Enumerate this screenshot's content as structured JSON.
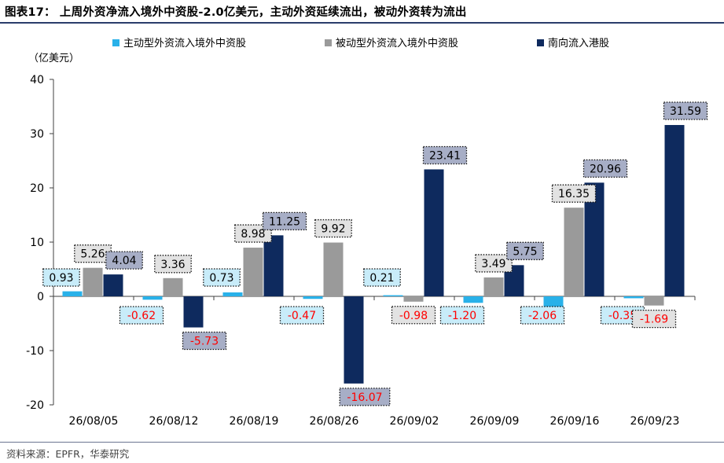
{
  "title": "图表17：  上周外资净流入境外中资股-2.0亿美元，主动外资延续流出，被动外资转为流出",
  "source": "资料来源：EPFR，华泰研究",
  "colors": {
    "active": "#29b1e9",
    "passive": "#9a9a9a",
    "southbound": "#0e2a5e",
    "label_red": "#ff0000",
    "label_fill_active": "#c8ecf9",
    "label_fill_passive": "#e2e2e2",
    "label_fill_southbound": "#a7aec6",
    "title_rule": "#2a3d6b"
  },
  "chart_data": {
    "type": "bar",
    "ylabel": "（亿美元）",
    "ylim": [
      -20,
      40
    ],
    "yticks": [
      -20,
      -10,
      0,
      10,
      20,
      30,
      40
    ],
    "legend_position": "top",
    "grid": false,
    "categories": [
      "26/08/05",
      "26/08/12",
      "26/08/19",
      "26/08/26",
      "26/09/02",
      "26/09/09",
      "26/09/16",
      "26/09/23"
    ],
    "series": [
      {
        "name": "主动型外资流入境外中资股",
        "color": "#29b1e9",
        "values": [
          0.93,
          -0.62,
          0.73,
          -0.47,
          0.21,
          -1.2,
          -2.06,
          -0.35
        ],
        "labels": [
          "0.93",
          "-0.62",
          "0.73",
          "-0.47",
          "0.21",
          "-1.20",
          "-2.06",
          "-0.35"
        ]
      },
      {
        "name": "被动型外资流入境外中资股",
        "color": "#9a9a9a",
        "values": [
          5.26,
          3.36,
          8.98,
          9.92,
          -0.98,
          3.49,
          16.35,
          -1.69
        ],
        "labels": [
          "5.26",
          "3.36",
          "8.98",
          "9.92",
          "-0.98",
          "3.49",
          "16.35",
          "-1.69"
        ]
      },
      {
        "name": "南向流入港股",
        "color": "#0e2a5e",
        "values": [
          4.04,
          -5.73,
          11.25,
          -16.07,
          23.41,
          5.75,
          20.96,
          31.59
        ],
        "labels": [
          "4.04",
          "-5.73",
          "11.25",
          "-16.07",
          "23.41",
          "5.75",
          "20.96",
          "31.59"
        ]
      }
    ]
  }
}
